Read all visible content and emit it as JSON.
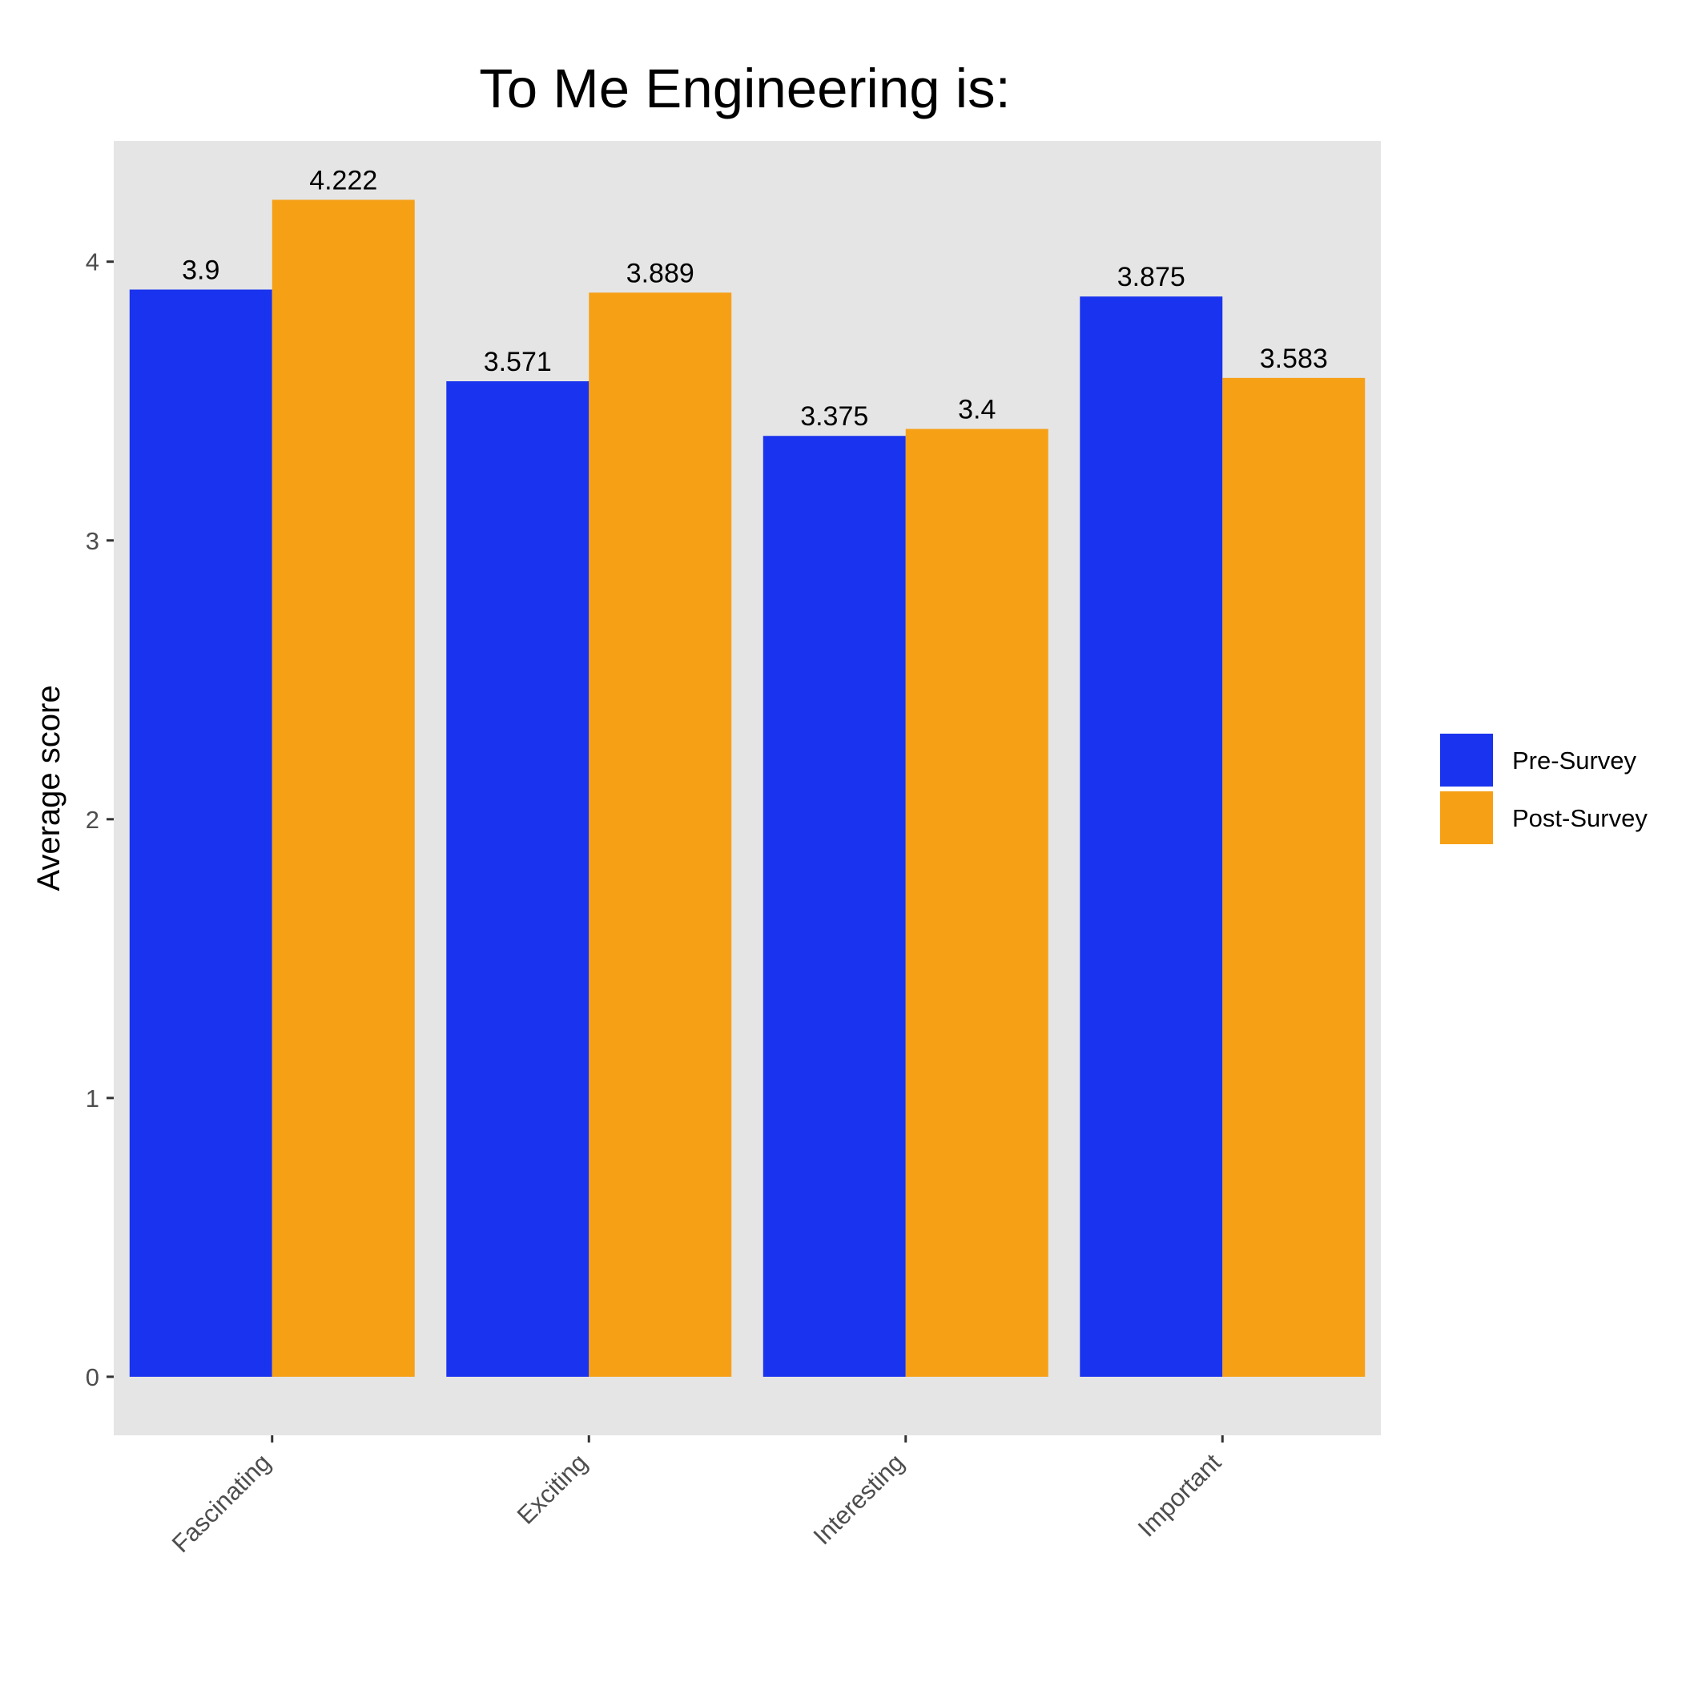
{
  "chart_data": {
    "type": "bar",
    "title": "To Me Engineering is:",
    "xlabel": "",
    "ylabel": "Average score",
    "categories": [
      "Fascinating",
      "Exciting",
      "Interesting",
      "Important"
    ],
    "series": [
      {
        "name": "Pre-Survey",
        "values": [
          3.9,
          3.571,
          3.375,
          3.875
        ],
        "labels": [
          "3.9",
          "3.571",
          "3.375",
          "3.875"
        ],
        "color": "#1a33ee"
      },
      {
        "name": "Post-Survey",
        "values": [
          4.222,
          3.889,
          3.4,
          3.583
        ],
        "labels": [
          "4.222",
          "3.889",
          "3.4",
          "3.583"
        ],
        "color": "#f6a016"
      }
    ],
    "yticks": [
      "0",
      "1",
      "2",
      "3",
      "4"
    ],
    "ylim": [
      -0.21,
      4.433
    ],
    "grid": false,
    "legend": "right",
    "panel_color": "#e5e5e5"
  }
}
